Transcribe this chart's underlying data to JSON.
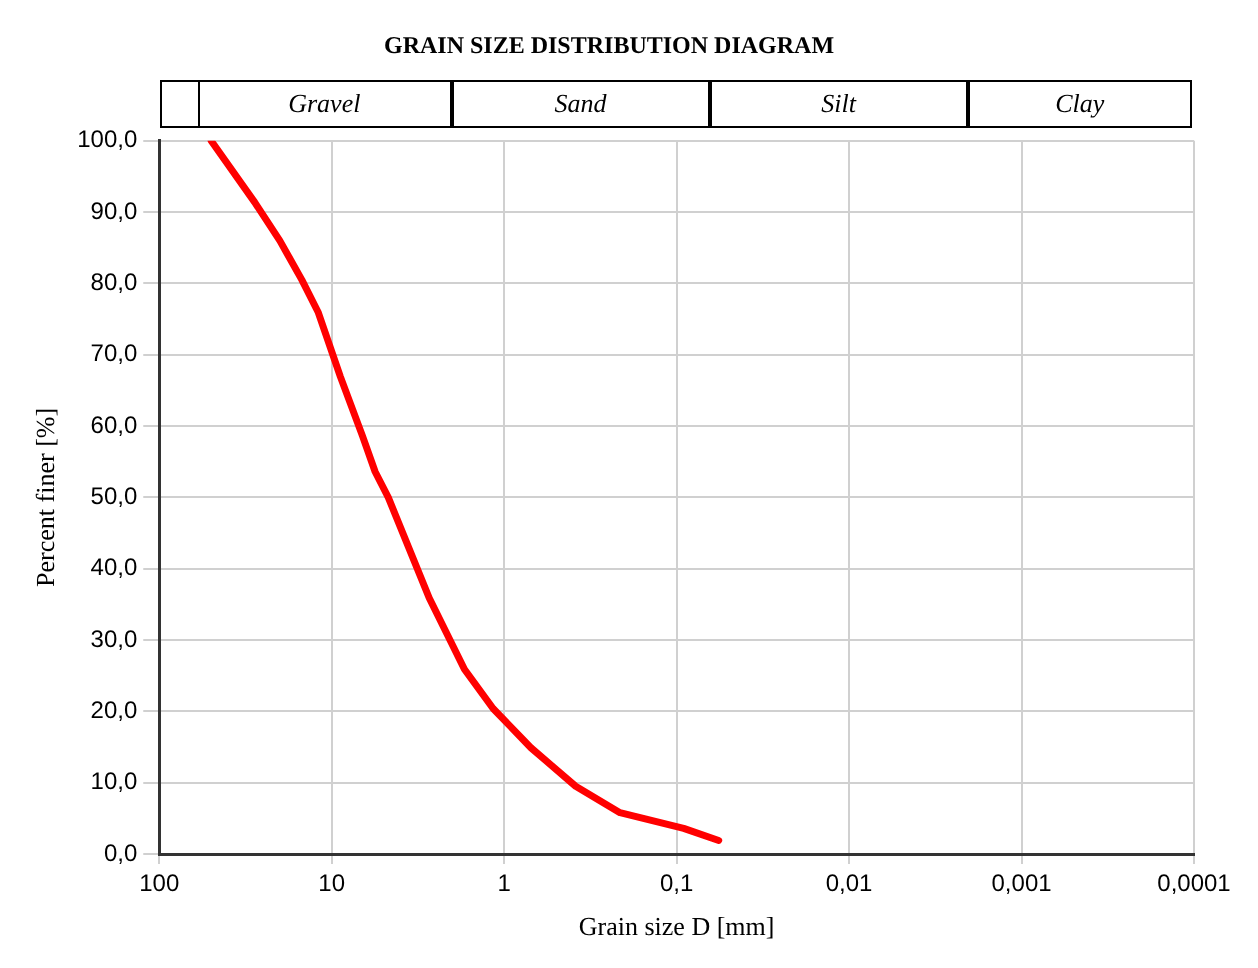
{
  "chart_data": {
    "type": "line",
    "title": "GRAIN SIZE DISTRIBUTION DIAGRAM",
    "xlabel": "Grain size D [mm]",
    "ylabel": "Percent finer [%]",
    "log": "x",
    "xlim": [
      100,
      0.0001
    ],
    "xticks": [
      100,
      10,
      1,
      {
        "value": 0.1,
        "label": "0,1"
      },
      {
        "value": 0.01,
        "label": "0,01"
      },
      {
        "value": 0.001,
        "label": "0,001"
      },
      {
        "value": 0.0001,
        "label": "0,0001"
      }
    ],
    "ylim": [
      0,
      100
    ],
    "yticks": [
      {
        "value": 0,
        "label": "0,0"
      },
      {
        "value": 10,
        "label": "10,0"
      },
      {
        "value": 20,
        "label": "20,0"
      },
      {
        "value": 30,
        "label": "30,0"
      },
      {
        "value": 40,
        "label": "40,0"
      },
      {
        "value": 50,
        "label": "50,0"
      },
      {
        "value": 60,
        "label": "60,0"
      },
      {
        "value": 70,
        "label": "70,0"
      },
      {
        "value": 80,
        "label": "80,0"
      },
      {
        "value": 90,
        "label": "90,0"
      },
      {
        "value": 100,
        "label": "100,0"
      }
    ],
    "grid": true,
    "legend": false,
    "marker": "none",
    "line_style": "solid",
    "annotations": [
      "Gravel",
      "Sand",
      "Silt",
      "Clay"
    ],
    "series": [
      {
        "color": "#ff0000",
        "x": [
          50,
          28,
          20,
          14.9,
          12,
          8.9,
          6.65,
          5.6,
          4.7,
          2.72,
          1.7,
          1.16,
          0.7,
          0.385,
          0.213,
          0.091,
          0.057
        ],
        "values": [
          100,
          91.4,
          86,
          80.5,
          76,
          66.9,
          58.7,
          53.6,
          50,
          35.9,
          25.9,
          20.4,
          14.9,
          9.5,
          5.8,
          3.6,
          1.9
        ]
      }
    ]
  }
}
